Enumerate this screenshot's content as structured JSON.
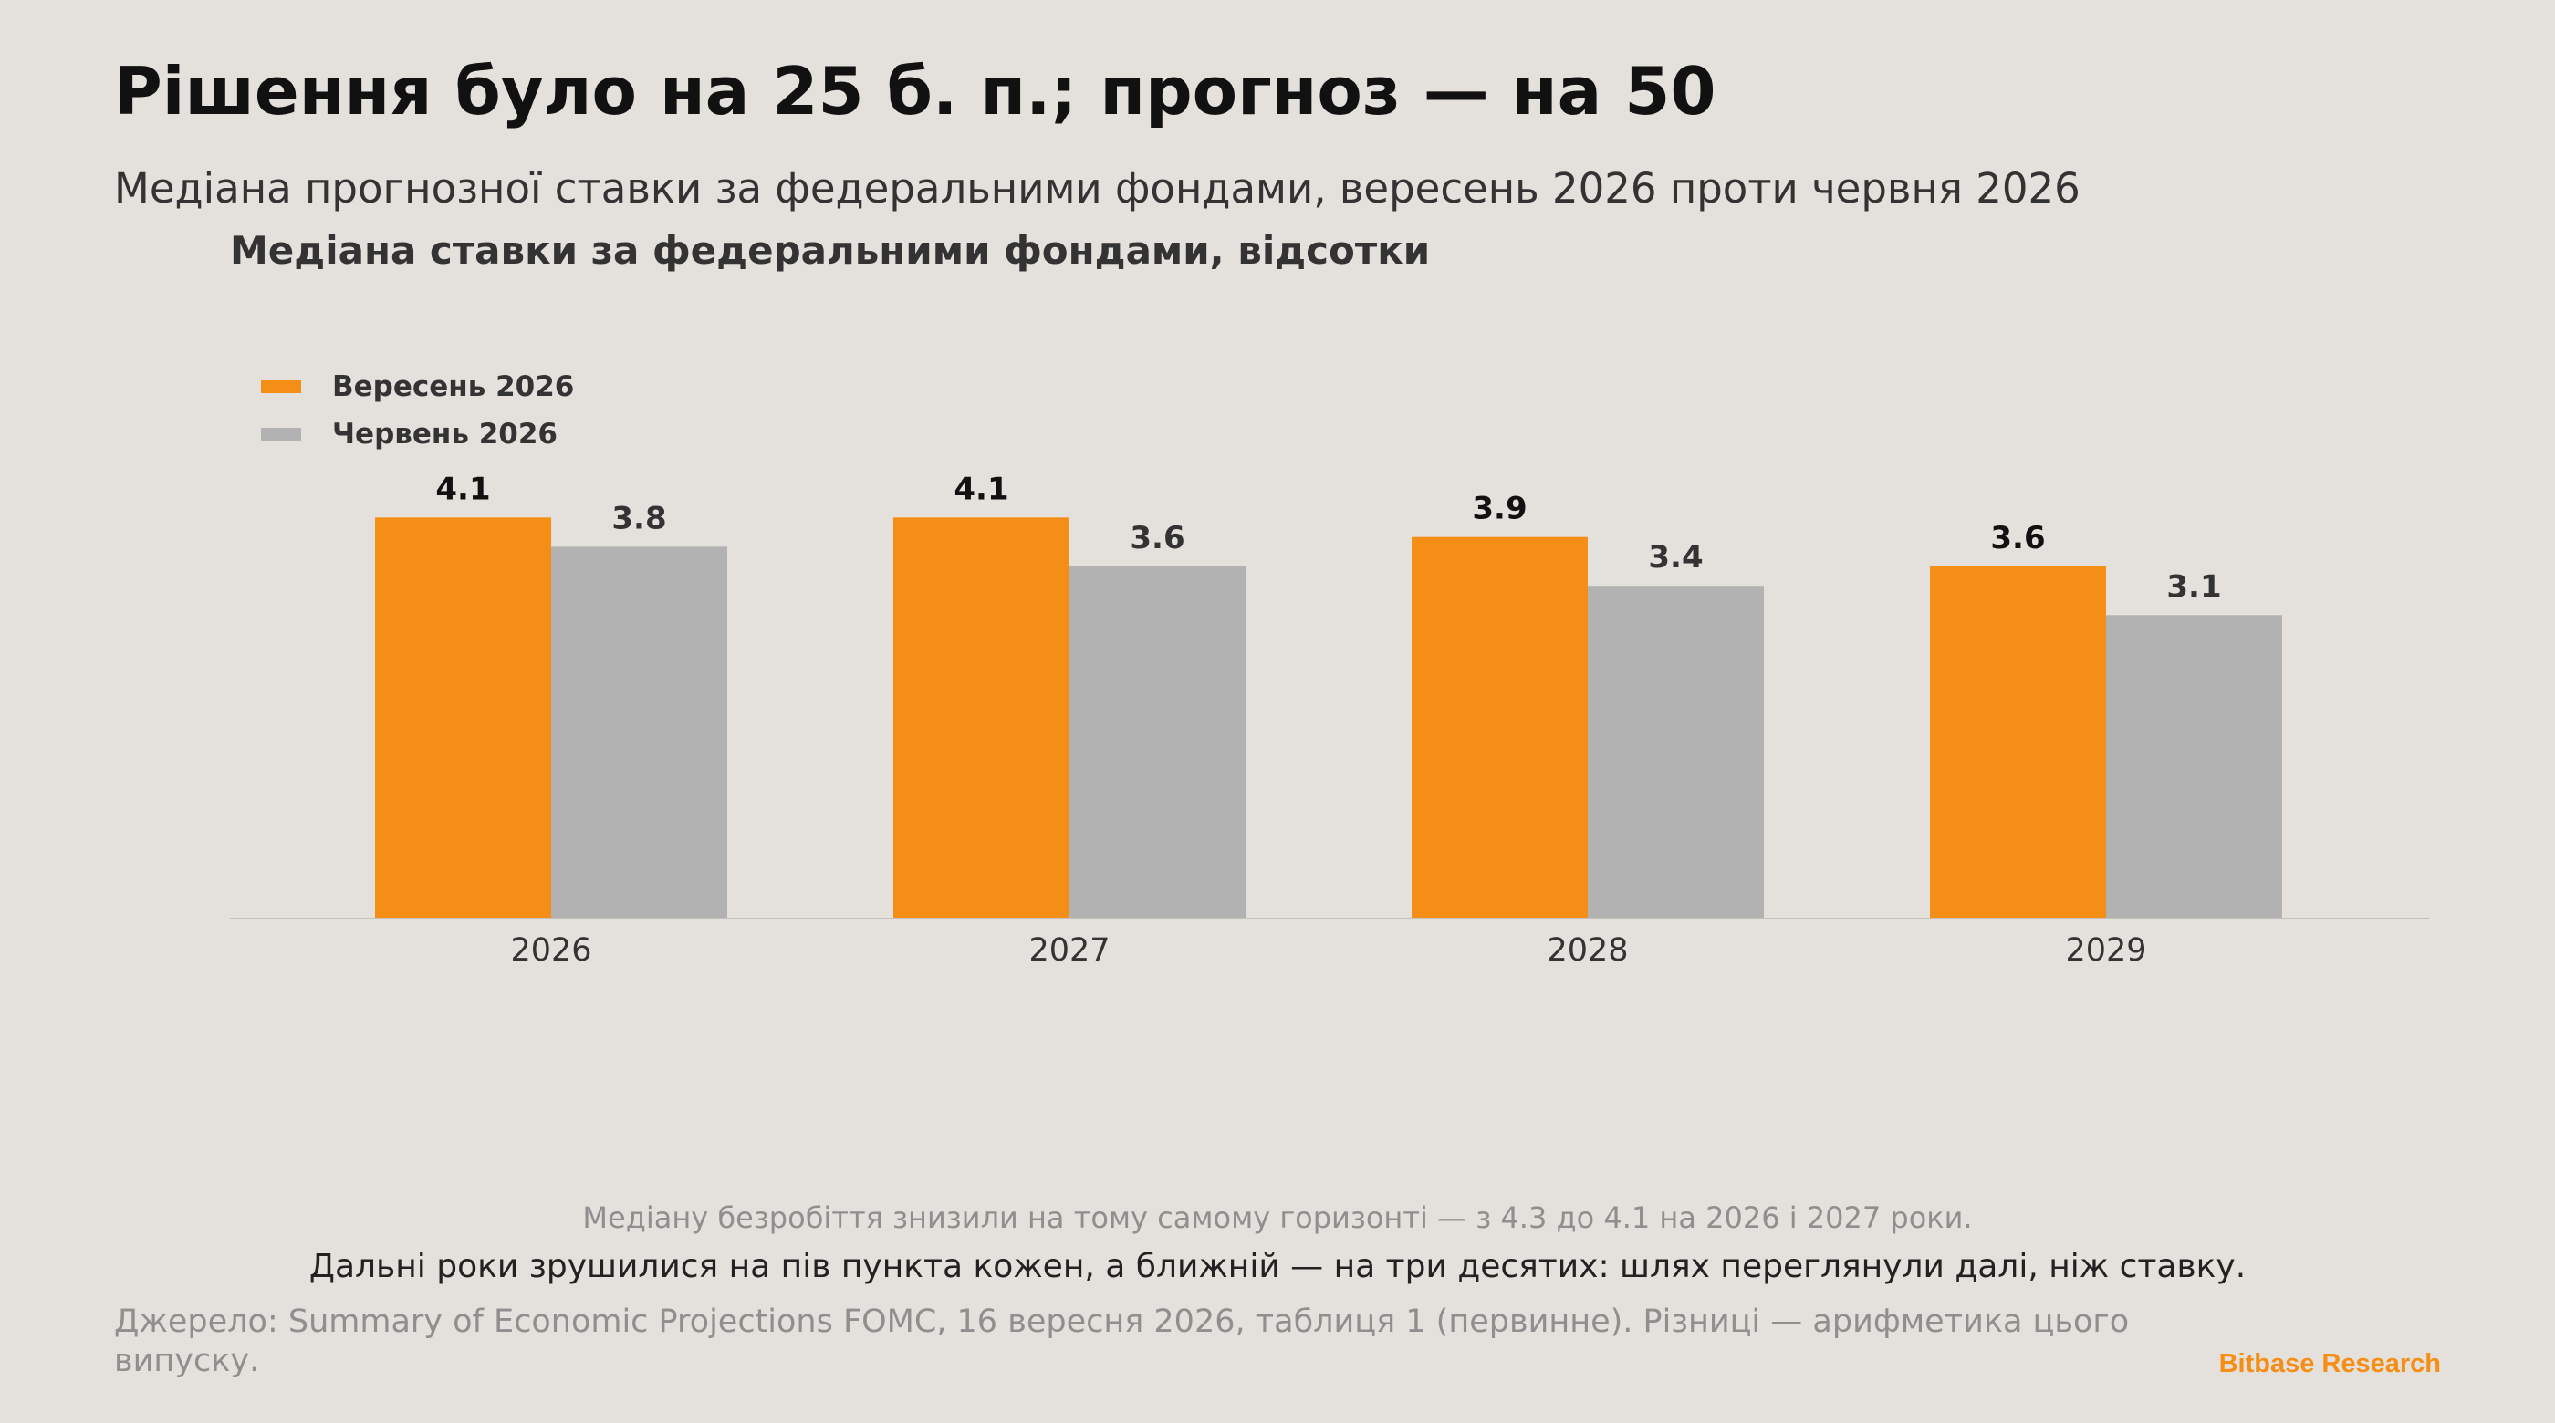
{
  "header": {
    "title": "Рішення було на 25 б. п.; прогноз — на 50",
    "subtitle": "Медіана прогнозної ставки за федеральними фондами, вересень 2026 проти червня 2026"
  },
  "colors": {
    "background": "#e4e0db",
    "september": "#f58e17",
    "june": "#b2b2b2",
    "brand": "#f58e17"
  },
  "chart_data": {
    "type": "bar",
    "title": "Медіана ставки за федеральними фондами, відсотки",
    "categories": [
      "2026",
      "2027",
      "2028",
      "2029"
    ],
    "series": [
      {
        "name": "Вересень 2026",
        "values": [
          4.1,
          4.1,
          3.9,
          3.6
        ],
        "labels": [
          "4.1",
          "4.1",
          "3.9",
          "3.6"
        ],
        "color": "#f58e17"
      },
      {
        "name": "Червень 2026",
        "values": [
          3.8,
          3.6,
          3.4,
          3.1
        ],
        "labels": [
          "3.8",
          "3.6",
          "3.4",
          "3.1"
        ],
        "color": "#b2b2b2"
      }
    ],
    "ylim": [
      0,
      4.5
    ],
    "grid": false,
    "legend_position": "top-left",
    "xlabel": "",
    "ylabel": ""
  },
  "footer": {
    "note_1": "Медіану безробіття знизили на тому самому горизонті — з 4.3 до 4.1 на 2026 і 2027 роки.",
    "note_2": "Дальні роки зрушилися на пів пункта кожен, а ближній — на три десятих: шлях переглянули далі, ніж ставку.",
    "source": "Джерело: Summary of Economic Projections FOMC, 16 вересня 2026, таблиця 1 (первинне). Різниці — арифметика цього випуску.",
    "brand": "Bitbase Research"
  }
}
